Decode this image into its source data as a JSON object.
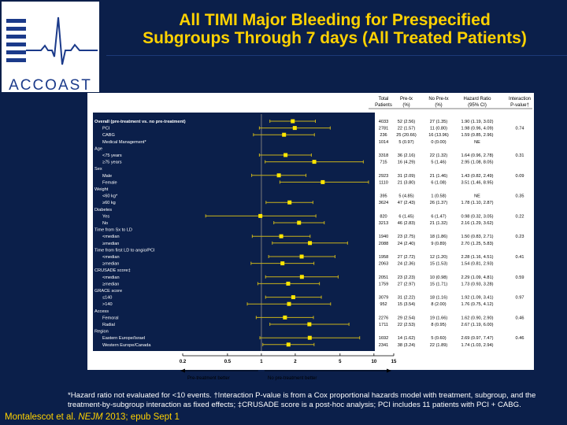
{
  "logo": {
    "brand": "ACCOAST"
  },
  "title": {
    "line1": "All TIMI Major Bleeding for Prespecified",
    "line2": "Subgroups Through 7 days (All Treated Patients)"
  },
  "table_headers": {
    "total": [
      "Total",
      "Patients"
    ],
    "pretx": [
      "Pre-tx",
      "(%)"
    ],
    "nopretx": [
      "No Pre-tx",
      "(%)"
    ],
    "hr": [
      "Hazard Ratio",
      "(95% CI)"
    ],
    "pint": [
      "Interaction",
      "P-value†"
    ]
  },
  "rows": [
    {
      "label": "Overall (pre-treatment vs. no pre-treatment)",
      "kind": "header",
      "total": "4033",
      "pretx": "52 (2.56)",
      "nopretx": "27 (1.35)",
      "hr": "1.90 (1.19, 3.02)",
      "p": ""
    },
    {
      "label": "PCI",
      "kind": "sub",
      "total": "2781",
      "pretx": "22 (1.57)",
      "nopretx": "11 (0.80)",
      "hr": "1.98 (0.96, 4.09)",
      "p": "0.74"
    },
    {
      "label": "CABG",
      "kind": "sub",
      "total": "236",
      "pretx": "25 (20.66)",
      "nopretx": "16 (13.96)",
      "hr": "1.59 (0.85, 2.96)",
      "p": ""
    },
    {
      "label": "Medical Management*",
      "kind": "sub",
      "total": "1014",
      "pretx": "5 (0.97)",
      "nopretx": "0 (0.00)",
      "hr": "NE",
      "p": ""
    },
    {
      "label": "Age",
      "kind": "cat",
      "total": "",
      "pretx": "",
      "nopretx": "",
      "hr": "",
      "p": ""
    },
    {
      "label": "<75 years",
      "kind": "sub",
      "total": "3318",
      "pretx": "36 (2.16)",
      "nopretx": "22 (1.32)",
      "hr": "1.64 (0.96, 2.78)",
      "p": "0.31"
    },
    {
      "label": "≥75 years",
      "kind": "sub",
      "total": "715",
      "pretx": "16 (4.29)",
      "nopretx": "5 (1.46)",
      "hr": "2.95 (1.08, 8.05)",
      "p": ""
    },
    {
      "label": "Sex",
      "kind": "cat",
      "total": "",
      "pretx": "",
      "nopretx": "",
      "hr": "",
      "p": ""
    },
    {
      "label": "Male",
      "kind": "sub",
      "total": "2923",
      "pretx": "31 (2.09)",
      "nopretx": "21 (1.46)",
      "hr": "1.43 (0.82, 2.49)",
      "p": "0.09"
    },
    {
      "label": "Female",
      "kind": "sub",
      "total": "1110",
      "pretx": "21 (3.80)",
      "nopretx": "6 (1.08)",
      "hr": "3.51 (1.46, 8.95)",
      "p": ""
    },
    {
      "label": "Weight",
      "kind": "cat",
      "total": "",
      "pretx": "",
      "nopretx": "",
      "hr": "",
      "p": ""
    },
    {
      "label": "<60 kg*",
      "kind": "sub",
      "total": "395",
      "pretx": "5 (4.85)",
      "nopretx": "1 (0.58)",
      "hr": "NE",
      "p": "0.35"
    },
    {
      "label": "≥60 kg",
      "kind": "sub",
      "total": "3624",
      "pretx": "47 (2.43)",
      "nopretx": "26 (1.37)",
      "hr": "1.78 (1.10, 2.87)",
      "p": ""
    },
    {
      "label": "Diabetes",
      "kind": "cat",
      "total": "",
      "pretx": "",
      "nopretx": "",
      "hr": "",
      "p": ""
    },
    {
      "label": "Yes",
      "kind": "sub",
      "total": "820",
      "pretx": "6 (1.45)",
      "nopretx": "6 (1.47)",
      "hr": "0.98 (0.32, 3.05)",
      "p": "0.22"
    },
    {
      "label": "No",
      "kind": "sub",
      "total": "3213",
      "pretx": "46 (2.83)",
      "nopretx": "21 (1.32)",
      "hr": "2.16 (1.29, 3.62)",
      "p": ""
    },
    {
      "label": "Time from Sx to LD",
      "kind": "cat",
      "total": "",
      "pretx": "",
      "nopretx": "",
      "hr": "",
      "p": ""
    },
    {
      "label": "<median",
      "kind": "sub",
      "total": "1940",
      "pretx": "23 (2.75)",
      "nopretx": "18 (1.86)",
      "hr": "1.50 (0.83, 2.71)",
      "p": "0.23"
    },
    {
      "label": "≥median",
      "kind": "sub",
      "total": "2088",
      "pretx": "24 (2.40)",
      "nopretx": "9 (0.89)",
      "hr": "2.70 (1.25, 5.83)",
      "p": ""
    },
    {
      "label": "Time from first LD to angio/PCI",
      "kind": "cat",
      "total": "",
      "pretx": "",
      "nopretx": "",
      "hr": "",
      "p": ""
    },
    {
      "label": "<median",
      "kind": "sub",
      "total": "1958",
      "pretx": "27 (2.72)",
      "nopretx": "12 (1.20)",
      "hr": "2.28 (1.16, 4.51)",
      "p": "0.41"
    },
    {
      "label": "≥median",
      "kind": "sub",
      "total": "2063",
      "pretx": "24 (2.36)",
      "nopretx": "15 (1.53)",
      "hr": "1.54 (0.81, 2.93)",
      "p": ""
    },
    {
      "label": "CRUSADE score‡",
      "kind": "cat",
      "total": "",
      "pretx": "",
      "nopretx": "",
      "hr": "",
      "p": ""
    },
    {
      "label": "<median",
      "kind": "sub",
      "total": "2051",
      "pretx": "23 (2.23)",
      "nopretx": "10 (0.98)",
      "hr": "2.29 (1.09, 4.81)",
      "p": "0.59"
    },
    {
      "label": "≥median",
      "kind": "sub",
      "total": "1759",
      "pretx": "27 (2.97)",
      "nopretx": "15 (1.71)",
      "hr": "1.73 (0.93, 3.28)",
      "p": ""
    },
    {
      "label": "GRACE score",
      "kind": "cat",
      "total": "",
      "pretx": "",
      "nopretx": "",
      "hr": "",
      "p": ""
    },
    {
      "label": "≤140",
      "kind": "sub",
      "total": "3079",
      "pretx": "31 (2.22)",
      "nopretx": "18 (1.16)",
      "hr": "1.92 (1.09, 3.41)",
      "p": "0.97"
    },
    {
      "label": ">140",
      "kind": "sub",
      "total": "952",
      "pretx": "15 (3.54)",
      "nopretx": "8 (2.00)",
      "hr": "1.76 (0.75, 4.12)",
      "p": ""
    },
    {
      "label": "Access",
      "kind": "cat",
      "total": "",
      "pretx": "",
      "nopretx": "",
      "hr": "",
      "p": ""
    },
    {
      "label": "Femoral",
      "kind": "sub",
      "total": "2276",
      "pretx": "29 (2.54)",
      "nopretx": "19 (1.66)",
      "hr": "1.62 (0.90, 2.90)",
      "p": "0.46"
    },
    {
      "label": "Radial",
      "kind": "sub",
      "total": "1711",
      "pretx": "22 (2.53)",
      "nopretx": "8 (0.95)",
      "hr": "2.67 (1.19, 6.00)",
      "p": ""
    },
    {
      "label": "Region",
      "kind": "cat",
      "total": "",
      "pretx": "",
      "nopretx": "",
      "hr": "",
      "p": ""
    },
    {
      "label": "Eastern Europe/Israel",
      "kind": "sub",
      "total": "1692",
      "pretx": "14 (1.62)",
      "nopretx": "5 (0.60)",
      "hr": "2.69 (0.97, 7.47)",
      "p": "0.46"
    },
    {
      "label": "Western Europe/Canada",
      "kind": "sub",
      "total": "2341",
      "pretx": "38 (3.24)",
      "nopretx": "22 (1.89)",
      "hr": "1.74 (1.03, 2.94)",
      "p": ""
    }
  ],
  "chart_data": {
    "type": "forest",
    "x_scale": "log",
    "x_ticks": [
      0.2,
      0.5,
      1,
      2,
      5,
      10,
      15
    ],
    "x_tick_labels": [
      "0.2",
      "0.5",
      "1",
      "2",
      "5",
      "10",
      "15"
    ],
    "reference_line": 1,
    "left_arrow_label": "Pre-treatment better",
    "right_arrow_label": "No pre-treatment better",
    "estimates": [
      {
        "row": 0,
        "hr": 1.9,
        "lo": 1.19,
        "hi": 3.02
      },
      {
        "row": 1,
        "hr": 1.98,
        "lo": 0.96,
        "hi": 4.09
      },
      {
        "row": 2,
        "hr": 1.59,
        "lo": 0.85,
        "hi": 2.96
      },
      {
        "row": 5,
        "hr": 1.64,
        "lo": 0.96,
        "hi": 2.78
      },
      {
        "row": 6,
        "hr": 2.95,
        "lo": 1.08,
        "hi": 8.05
      },
      {
        "row": 8,
        "hr": 1.43,
        "lo": 0.82,
        "hi": 2.49
      },
      {
        "row": 9,
        "hr": 3.51,
        "lo": 1.46,
        "hi": 8.95
      },
      {
        "row": 12,
        "hr": 1.78,
        "lo": 1.1,
        "hi": 2.87
      },
      {
        "row": 14,
        "hr": 0.98,
        "lo": 0.32,
        "hi": 3.05
      },
      {
        "row": 15,
        "hr": 2.16,
        "lo": 1.29,
        "hi": 3.62
      },
      {
        "row": 17,
        "hr": 1.5,
        "lo": 0.83,
        "hi": 2.71
      },
      {
        "row": 18,
        "hr": 2.7,
        "lo": 1.25,
        "hi": 5.83
      },
      {
        "row": 20,
        "hr": 2.28,
        "lo": 1.16,
        "hi": 4.51
      },
      {
        "row": 21,
        "hr": 1.54,
        "lo": 0.81,
        "hi": 2.93
      },
      {
        "row": 23,
        "hr": 2.29,
        "lo": 1.09,
        "hi": 4.81
      },
      {
        "row": 24,
        "hr": 1.73,
        "lo": 0.93,
        "hi": 3.28
      },
      {
        "row": 26,
        "hr": 1.92,
        "lo": 1.09,
        "hi": 3.41
      },
      {
        "row": 27,
        "hr": 1.76,
        "lo": 0.75,
        "hi": 4.12
      },
      {
        "row": 29,
        "hr": 1.62,
        "lo": 0.9,
        "hi": 2.9
      },
      {
        "row": 30,
        "hr": 2.67,
        "lo": 1.19,
        "hi": 6.0
      },
      {
        "row": 32,
        "hr": 2.69,
        "lo": 0.97,
        "hi": 7.47
      },
      {
        "row": 33,
        "hr": 1.74,
        "lo": 1.03,
        "hi": 2.94
      }
    ],
    "colors": {
      "ci_line": "#c9b21a",
      "point": "#ffe600",
      "ref_line": "#7a7a7a",
      "plot_bg": "#0b1f4a"
    }
  },
  "footnote": "*Hazard ratio not evaluated for <10 events. †Interaction P-value is from a Cox proportional hazards model with treatment, subgroup, and the treatment-by-subgroup interaction as fixed effects; ‡CRUSADE score is a post-hoc analysis; PCI includes 11 patients with PCI + CABG.",
  "citation": {
    "authors": "Montalescot et al. ",
    "journal": "NEJM",
    "rest": " 2013; epub Sept 1"
  }
}
